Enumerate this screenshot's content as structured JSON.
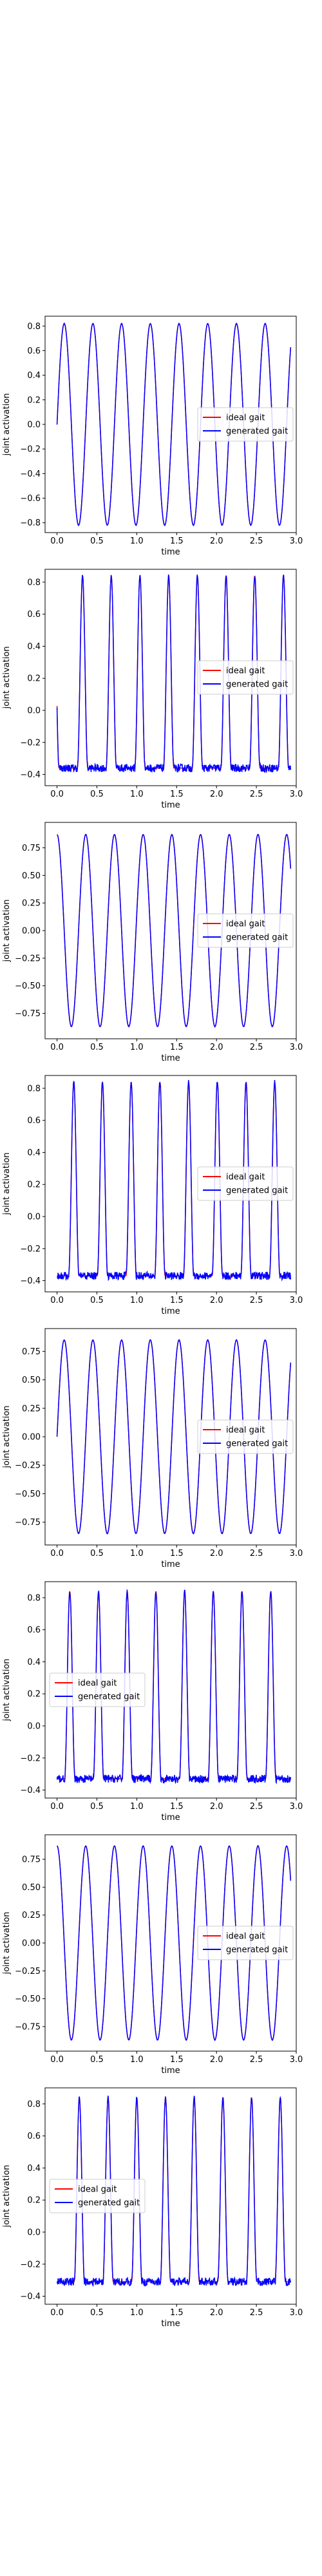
{
  "figure": {
    "background": "#ffffff"
  },
  "legend_labels": {
    "ideal": "ideal gait",
    "generated": "generated gait"
  },
  "colors": {
    "ideal": "#ff0000",
    "generated": "#0000ff",
    "frame": "#000000"
  },
  "chart_data": [
    {
      "type": "line",
      "shape": "sine",
      "xlabel": "time",
      "ylabel": "joint activation",
      "xlim": [
        -0.15,
        3.0
      ],
      "ylim": [
        -0.88,
        0.88
      ],
      "xticks": [
        0.0,
        0.5,
        1.0,
        1.5,
        2.0,
        2.5,
        3.0
      ],
      "xtick_labels": [
        "0.0",
        "0.5",
        "1.0",
        "1.5",
        "2.0",
        "2.5",
        "3.0"
      ],
      "yticks": [
        -0.8,
        -0.6,
        -0.4,
        -0.2,
        0.0,
        0.2,
        0.4,
        0.6,
        0.8
      ],
      "ytick_labels": [
        "−0.8",
        "−0.6",
        "−0.4",
        "−0.2",
        "0.0",
        "0.2",
        "0.4",
        "0.6",
        "0.8"
      ],
      "legend_loc": "center right",
      "period": 0.36,
      "phase": 0.0,
      "amplitude": 0.82,
      "offset": 0.0,
      "x_end": 2.93,
      "noise": 0.005,
      "series": [
        {
          "name": "ideal gait",
          "color": "#ff0000"
        },
        {
          "name": "generated gait",
          "color": "#0000ff"
        }
      ]
    },
    {
      "type": "line",
      "shape": "pulse",
      "xlabel": "time",
      "ylabel": "joint activation",
      "xlim": [
        -0.15,
        3.0
      ],
      "ylim": [
        -0.47,
        0.88
      ],
      "xticks": [
        0.0,
        0.5,
        1.0,
        1.5,
        2.0,
        2.5,
        3.0
      ],
      "xtick_labels": [
        "0.0",
        "0.5",
        "1.0",
        "1.5",
        "2.0",
        "2.5",
        "3.0"
      ],
      "yticks": [
        -0.4,
        -0.2,
        0.0,
        0.2,
        0.4,
        0.6,
        0.8
      ],
      "ytick_labels": [
        "−0.4",
        "−0.2",
        "0.0",
        "0.2",
        "0.4",
        "0.6",
        "0.8"
      ],
      "legend_loc": "center right",
      "period": 0.36,
      "phase": 0.14,
      "baseline": -0.36,
      "peak": 0.84,
      "pulse_width": 0.13,
      "x_end": 2.93,
      "noise": 0.025,
      "series": [
        {
          "name": "ideal gait",
          "color": "#ff0000"
        },
        {
          "name": "generated gait",
          "color": "#0000ff"
        }
      ]
    },
    {
      "type": "line",
      "shape": "sine",
      "xlabel": "time",
      "ylabel": "joint activation",
      "xlim": [
        -0.15,
        3.0
      ],
      "ylim": [
        -0.98,
        0.98
      ],
      "xticks": [
        0.0,
        0.5,
        1.0,
        1.5,
        2.0,
        2.5,
        3.0
      ],
      "xtick_labels": [
        "0.0",
        "0.5",
        "1.0",
        "1.5",
        "2.0",
        "2.5",
        "3.0"
      ],
      "yticks": [
        -0.75,
        -0.5,
        -0.25,
        0.0,
        0.25,
        0.5,
        0.75
      ],
      "ytick_labels": [
        "−0.75",
        "−0.50",
        "−0.25",
        "0.00",
        "0.25",
        "0.50",
        "0.75"
      ],
      "legend_loc": "center right",
      "period": 0.36,
      "phase": -0.09,
      "amplitude": 0.87,
      "offset": 0.0,
      "x_end": 2.93,
      "noise": 0.005,
      "series": [
        {
          "name": "ideal gait",
          "color": "#ff0000"
        },
        {
          "name": "generated gait",
          "color": "#0000ff"
        }
      ]
    },
    {
      "type": "line",
      "shape": "pulse",
      "xlabel": "time",
      "ylabel": "joint activation",
      "xlim": [
        -0.15,
        3.0
      ],
      "ylim": [
        -0.47,
        0.88
      ],
      "xticks": [
        0.0,
        0.5,
        1.0,
        1.5,
        2.0,
        2.5,
        3.0
      ],
      "xtick_labels": [
        "0.0",
        "0.5",
        "1.0",
        "1.5",
        "2.0",
        "2.5",
        "3.0"
      ],
      "yticks": [
        -0.4,
        -0.2,
        0.0,
        0.2,
        0.4,
        0.6,
        0.8
      ],
      "ytick_labels": [
        "−0.4",
        "−0.2",
        "0.0",
        "0.2",
        "0.4",
        "0.6",
        "0.8"
      ],
      "legend_loc": "center right",
      "period": 0.36,
      "phase": 0.03,
      "baseline": -0.37,
      "peak": 0.84,
      "pulse_width": 0.13,
      "x_end": 2.93,
      "noise": 0.025,
      "series": [
        {
          "name": "ideal gait",
          "color": "#ff0000"
        },
        {
          "name": "generated gait",
          "color": "#0000ff"
        }
      ]
    },
    {
      "type": "line",
      "shape": "sine",
      "xlabel": "time",
      "ylabel": "joint activation",
      "xlim": [
        -0.15,
        3.0
      ],
      "ylim": [
        -0.95,
        0.95
      ],
      "xticks": [
        0.0,
        0.5,
        1.0,
        1.5,
        2.0,
        2.5,
        3.0
      ],
      "xtick_labels": [
        "0.0",
        "0.5",
        "1.0",
        "1.5",
        "2.0",
        "2.5",
        "3.0"
      ],
      "yticks": [
        -0.75,
        -0.5,
        -0.25,
        0.0,
        0.25,
        0.5,
        0.75
      ],
      "ytick_labels": [
        "−0.75",
        "−0.50",
        "−0.25",
        "0.00",
        "0.25",
        "0.50",
        "0.75"
      ],
      "legend_loc": "center right",
      "period": 0.36,
      "phase": 0.0,
      "amplitude": 0.85,
      "offset": 0.0,
      "x_end": 2.93,
      "noise": 0.005,
      "series": [
        {
          "name": "ideal gait",
          "color": "#ff0000"
        },
        {
          "name": "generated gait",
          "color": "#0000ff"
        }
      ]
    },
    {
      "type": "line",
      "shape": "pulse",
      "xlabel": "time",
      "ylabel": "joint activation",
      "xlim": [
        -0.15,
        3.0
      ],
      "ylim": [
        -0.45,
        0.9
      ],
      "xticks": [
        0.0,
        0.5,
        1.0,
        1.5,
        2.0,
        2.5,
        3.0
      ],
      "xtick_labels": [
        "0.0",
        "0.5",
        "1.0",
        "1.5",
        "2.0",
        "2.5",
        "3.0"
      ],
      "yticks": [
        -0.4,
        -0.2,
        0.0,
        0.2,
        0.4,
        0.6,
        0.8
      ],
      "ytick_labels": [
        "−0.4",
        "−0.2",
        "0.0",
        "0.2",
        "0.4",
        "0.6",
        "0.8"
      ],
      "legend_loc": "center left",
      "period": 0.36,
      "phase": -0.02,
      "baseline": -0.33,
      "peak": 0.84,
      "pulse_width": 0.13,
      "x_end": 2.93,
      "noise": 0.025,
      "series": [
        {
          "name": "ideal gait",
          "color": "#ff0000"
        },
        {
          "name": "generated gait",
          "color": "#0000ff"
        }
      ]
    },
    {
      "type": "line",
      "shape": "sine",
      "xlabel": "time",
      "ylabel": "joint activation",
      "xlim": [
        -0.15,
        3.0
      ],
      "ylim": [
        -0.97,
        0.97
      ],
      "xticks": [
        0.0,
        0.5,
        1.0,
        1.5,
        2.0,
        2.5,
        3.0
      ],
      "xtick_labels": [
        "0.0",
        "0.5",
        "1.0",
        "1.5",
        "2.0",
        "2.5",
        "3.0"
      ],
      "yticks": [
        -0.75,
        -0.5,
        -0.25,
        0.0,
        0.25,
        0.5,
        0.75
      ],
      "ytick_labels": [
        "−0.75",
        "−0.50",
        "−0.25",
        "0.00",
        "0.25",
        "0.50",
        "0.75"
      ],
      "legend_loc": "center right",
      "period": 0.36,
      "phase": -0.09,
      "amplitude": 0.87,
      "offset": 0.0,
      "x_end": 2.93,
      "noise": 0.005,
      "series": [
        {
          "name": "ideal gait",
          "color": "#ff0000"
        },
        {
          "name": "generated gait",
          "color": "#0000ff"
        }
      ]
    },
    {
      "type": "line",
      "shape": "pulse",
      "xlabel": "time",
      "ylabel": "joint activation",
      "xlim": [
        -0.15,
        3.0
      ],
      "ylim": [
        -0.45,
        0.9
      ],
      "xticks": [
        0.0,
        0.5,
        1.0,
        1.5,
        2.0,
        2.5,
        3.0
      ],
      "xtick_labels": [
        "0.0",
        "0.5",
        "1.0",
        "1.5",
        "2.0",
        "2.5",
        "3.0"
      ],
      "yticks": [
        -0.4,
        -0.2,
        0.0,
        0.2,
        0.4,
        0.6,
        0.8
      ],
      "ytick_labels": [
        "−0.4",
        "−0.2",
        "0.0",
        "0.2",
        "0.4",
        "0.6",
        "0.8"
      ],
      "legend_loc": "center left",
      "period": 0.36,
      "phase": 0.1,
      "baseline": -0.31,
      "peak": 0.84,
      "pulse_width": 0.13,
      "x_end": 2.93,
      "noise": 0.025,
      "series": [
        {
          "name": "ideal gait",
          "color": "#ff0000"
        },
        {
          "name": "generated gait",
          "color": "#0000ff"
        }
      ]
    }
  ]
}
